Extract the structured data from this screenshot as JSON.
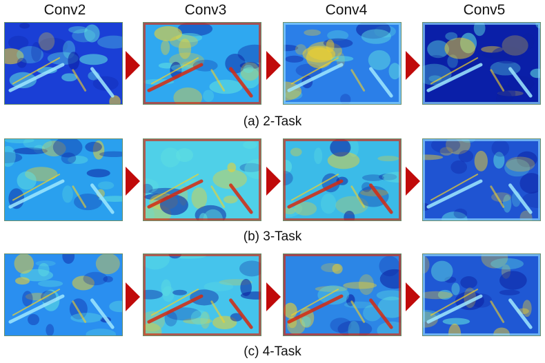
{
  "columns": [
    "Conv2",
    "Conv3",
    "Conv4",
    "Conv5"
  ],
  "rows": [
    {
      "caption": "(a) 2-Task",
      "tiles": [
        {
          "base": "#1a3fd6",
          "level": 0.25
        },
        {
          "base": "#2fa8f0",
          "level": 0.55
        },
        {
          "base": "#2b7fe8",
          "level": 0.45
        },
        {
          "base": "#0a1fa8",
          "level": 0.2
        }
      ]
    },
    {
      "caption": "(b) 3-Task",
      "tiles": [
        {
          "base": "#2aa0ee",
          "level": 0.4
        },
        {
          "base": "#4fd0e8",
          "level": 0.7
        },
        {
          "base": "#3bbbe8",
          "level": 0.65
        },
        {
          "base": "#1f54d2",
          "level": 0.35
        }
      ]
    },
    {
      "caption": "(c) 4-Task",
      "tiles": [
        {
          "base": "#2a8ff0",
          "level": 0.35
        },
        {
          "base": "#45c4ec",
          "level": 0.55
        },
        {
          "base": "#2c86e6",
          "level": 0.55
        },
        {
          "base": "#1f58d4",
          "level": 0.45
        }
      ]
    }
  ],
  "colors": {
    "arrow": "#c00a0a",
    "hot": "#d62a10",
    "warm": "#f2d22a",
    "cool": "#0b1fa0"
  }
}
